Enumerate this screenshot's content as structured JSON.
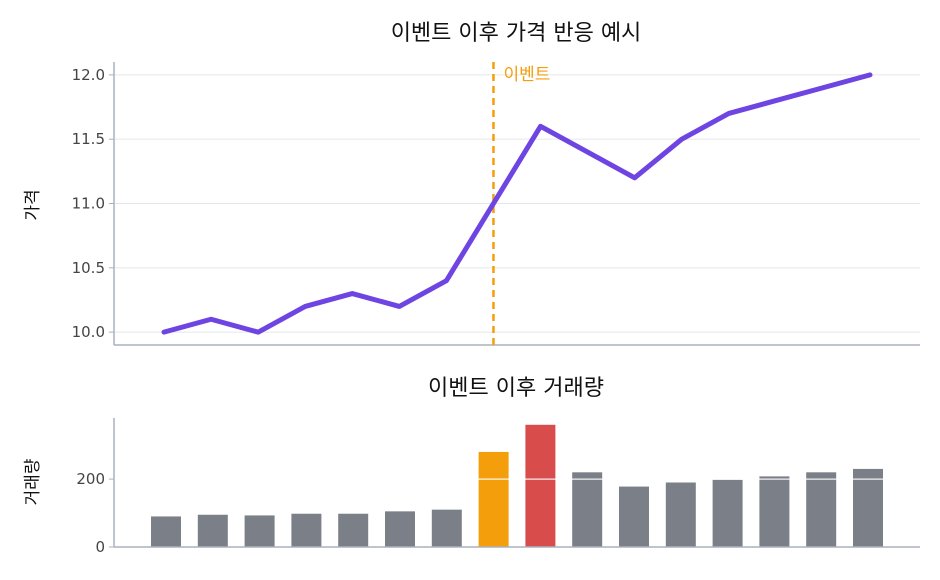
{
  "chart_data": [
    {
      "type": "line",
      "title": "이벤트 이후 가격 반응 예시",
      "ylabel": "가격",
      "xlabel": "",
      "x": [
        0,
        1,
        2,
        3,
        4,
        5,
        6,
        7,
        8,
        9,
        10,
        11,
        12,
        13,
        14,
        15
      ],
      "series": [
        {
          "values": [
            10.0,
            10.1,
            10.0,
            10.2,
            10.3,
            10.2,
            10.4,
            11.0,
            11.6,
            11.4,
            11.2,
            11.5,
            11.7,
            11.8,
            11.9,
            12.0
          ]
        }
      ],
      "ylim": [
        9.9,
        12.1
      ],
      "yticks": [
        "10.0",
        "10.5",
        "11.0",
        "11.5",
        "12.0"
      ],
      "line_color": "#6e45e2",
      "event": {
        "x": 7,
        "label": "이벤트",
        "color": "#f59e0b"
      },
      "grid": true
    },
    {
      "type": "bar",
      "title": "이벤트 이후 거래량",
      "ylabel": "거래량",
      "xlabel": "",
      "x": [
        0,
        1,
        2,
        3,
        4,
        5,
        6,
        7,
        8,
        9,
        10,
        11,
        12,
        13,
        14,
        15
      ],
      "values": [
        90,
        95,
        93,
        98,
        98,
        105,
        110,
        280,
        360,
        220,
        178,
        190,
        198,
        208,
        220,
        230
      ],
      "ylim": [
        0,
        380
      ],
      "yticks": [
        "0",
        "200"
      ],
      "colors": {
        "default": "#7a7f88",
        "event": "#f59e0b",
        "peak": "#d94c4c"
      },
      "event_index": 7,
      "peak_index": 8,
      "grid": true
    }
  ]
}
